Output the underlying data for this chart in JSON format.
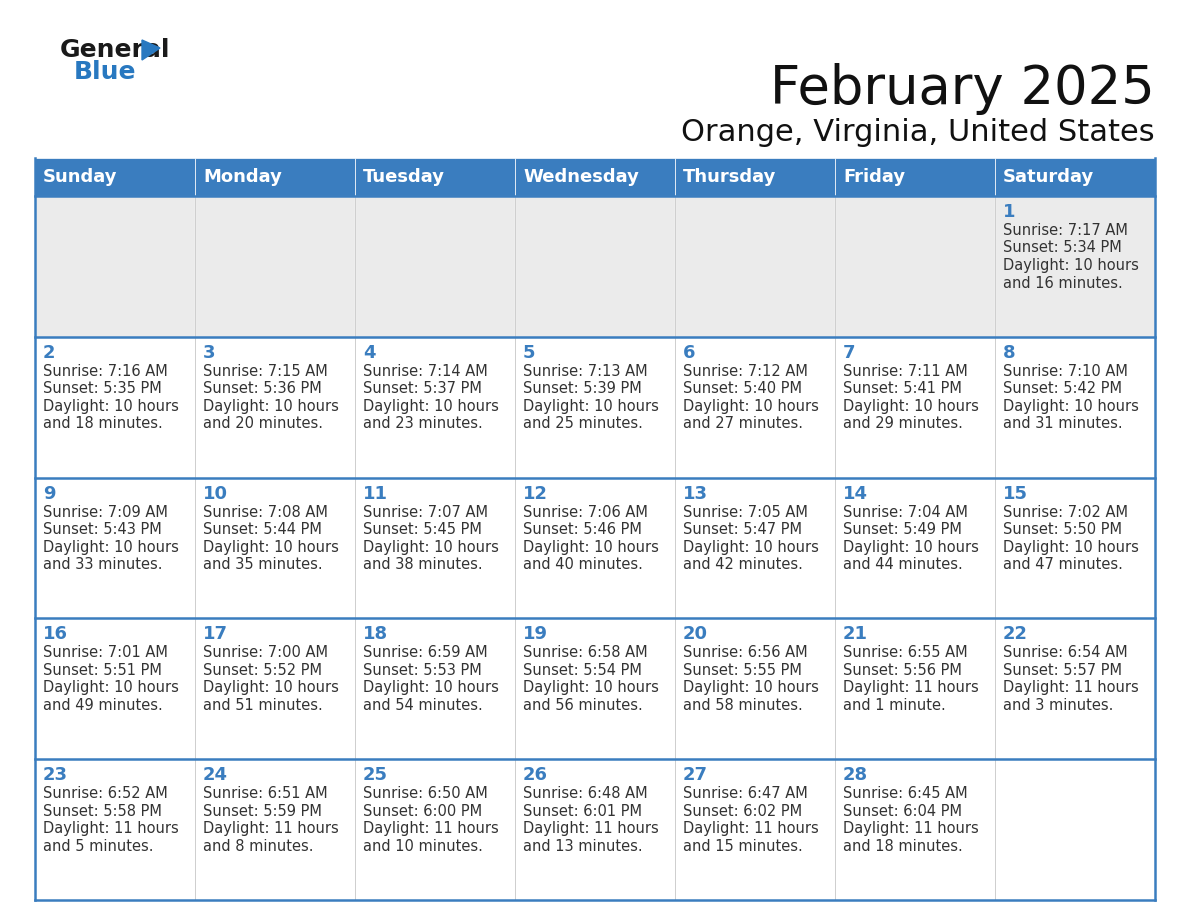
{
  "title": "February 2025",
  "subtitle": "Orange, Virginia, United States",
  "header_bg": "#3a7dbf",
  "header_text_color": "#ffffff",
  "day_names": [
    "Sunday",
    "Monday",
    "Tuesday",
    "Wednesday",
    "Thursday",
    "Friday",
    "Saturday"
  ],
  "row0_bg": "#ebebeb",
  "row_bg": "#ffffff",
  "cell_border_color": "#3a7dbf",
  "day_num_color": "#3a7dbf",
  "cell_text_color": "#333333",
  "days": [
    {
      "day": 1,
      "col": 6,
      "row": 0,
      "sunrise": "7:17 AM",
      "sunset": "5:34 PM",
      "daylight_h": "10 hours",
      "daylight_m": "and 16 minutes."
    },
    {
      "day": 2,
      "col": 0,
      "row": 1,
      "sunrise": "7:16 AM",
      "sunset": "5:35 PM",
      "daylight_h": "10 hours",
      "daylight_m": "and 18 minutes."
    },
    {
      "day": 3,
      "col": 1,
      "row": 1,
      "sunrise": "7:15 AM",
      "sunset": "5:36 PM",
      "daylight_h": "10 hours",
      "daylight_m": "and 20 minutes."
    },
    {
      "day": 4,
      "col": 2,
      "row": 1,
      "sunrise": "7:14 AM",
      "sunset": "5:37 PM",
      "daylight_h": "10 hours",
      "daylight_m": "and 23 minutes."
    },
    {
      "day": 5,
      "col": 3,
      "row": 1,
      "sunrise": "7:13 AM",
      "sunset": "5:39 PM",
      "daylight_h": "10 hours",
      "daylight_m": "and 25 minutes."
    },
    {
      "day": 6,
      "col": 4,
      "row": 1,
      "sunrise": "7:12 AM",
      "sunset": "5:40 PM",
      "daylight_h": "10 hours",
      "daylight_m": "and 27 minutes."
    },
    {
      "day": 7,
      "col": 5,
      "row": 1,
      "sunrise": "7:11 AM",
      "sunset": "5:41 PM",
      "daylight_h": "10 hours",
      "daylight_m": "and 29 minutes."
    },
    {
      "day": 8,
      "col": 6,
      "row": 1,
      "sunrise": "7:10 AM",
      "sunset": "5:42 PM",
      "daylight_h": "10 hours",
      "daylight_m": "and 31 minutes."
    },
    {
      "day": 9,
      "col": 0,
      "row": 2,
      "sunrise": "7:09 AM",
      "sunset": "5:43 PM",
      "daylight_h": "10 hours",
      "daylight_m": "and 33 minutes."
    },
    {
      "day": 10,
      "col": 1,
      "row": 2,
      "sunrise": "7:08 AM",
      "sunset": "5:44 PM",
      "daylight_h": "10 hours",
      "daylight_m": "and 35 minutes."
    },
    {
      "day": 11,
      "col": 2,
      "row": 2,
      "sunrise": "7:07 AM",
      "sunset": "5:45 PM",
      "daylight_h": "10 hours",
      "daylight_m": "and 38 minutes."
    },
    {
      "day": 12,
      "col": 3,
      "row": 2,
      "sunrise": "7:06 AM",
      "sunset": "5:46 PM",
      "daylight_h": "10 hours",
      "daylight_m": "and 40 minutes."
    },
    {
      "day": 13,
      "col": 4,
      "row": 2,
      "sunrise": "7:05 AM",
      "sunset": "5:47 PM",
      "daylight_h": "10 hours",
      "daylight_m": "and 42 minutes."
    },
    {
      "day": 14,
      "col": 5,
      "row": 2,
      "sunrise": "7:04 AM",
      "sunset": "5:49 PM",
      "daylight_h": "10 hours",
      "daylight_m": "and 44 minutes."
    },
    {
      "day": 15,
      "col": 6,
      "row": 2,
      "sunrise": "7:02 AM",
      "sunset": "5:50 PM",
      "daylight_h": "10 hours",
      "daylight_m": "and 47 minutes."
    },
    {
      "day": 16,
      "col": 0,
      "row": 3,
      "sunrise": "7:01 AM",
      "sunset": "5:51 PM",
      "daylight_h": "10 hours",
      "daylight_m": "and 49 minutes."
    },
    {
      "day": 17,
      "col": 1,
      "row": 3,
      "sunrise": "7:00 AM",
      "sunset": "5:52 PM",
      "daylight_h": "10 hours",
      "daylight_m": "and 51 minutes."
    },
    {
      "day": 18,
      "col": 2,
      "row": 3,
      "sunrise": "6:59 AM",
      "sunset": "5:53 PM",
      "daylight_h": "10 hours",
      "daylight_m": "and 54 minutes."
    },
    {
      "day": 19,
      "col": 3,
      "row": 3,
      "sunrise": "6:58 AM",
      "sunset": "5:54 PM",
      "daylight_h": "10 hours",
      "daylight_m": "and 56 minutes."
    },
    {
      "day": 20,
      "col": 4,
      "row": 3,
      "sunrise": "6:56 AM",
      "sunset": "5:55 PM",
      "daylight_h": "10 hours",
      "daylight_m": "and 58 minutes."
    },
    {
      "day": 21,
      "col": 5,
      "row": 3,
      "sunrise": "6:55 AM",
      "sunset": "5:56 PM",
      "daylight_h": "11 hours",
      "daylight_m": "and 1 minute."
    },
    {
      "day": 22,
      "col": 6,
      "row": 3,
      "sunrise": "6:54 AM",
      "sunset": "5:57 PM",
      "daylight_h": "11 hours",
      "daylight_m": "and 3 minutes."
    },
    {
      "day": 23,
      "col": 0,
      "row": 4,
      "sunrise": "6:52 AM",
      "sunset": "5:58 PM",
      "daylight_h": "11 hours",
      "daylight_m": "and 5 minutes."
    },
    {
      "day": 24,
      "col": 1,
      "row": 4,
      "sunrise": "6:51 AM",
      "sunset": "5:59 PM",
      "daylight_h": "11 hours",
      "daylight_m": "and 8 minutes."
    },
    {
      "day": 25,
      "col": 2,
      "row": 4,
      "sunrise": "6:50 AM",
      "sunset": "6:00 PM",
      "daylight_h": "11 hours",
      "daylight_m": "and 10 minutes."
    },
    {
      "day": 26,
      "col": 3,
      "row": 4,
      "sunrise": "6:48 AM",
      "sunset": "6:01 PM",
      "daylight_h": "11 hours",
      "daylight_m": "and 13 minutes."
    },
    {
      "day": 27,
      "col": 4,
      "row": 4,
      "sunrise": "6:47 AM",
      "sunset": "6:02 PM",
      "daylight_h": "11 hours",
      "daylight_m": "and 15 minutes."
    },
    {
      "day": 28,
      "col": 5,
      "row": 4,
      "sunrise": "6:45 AM",
      "sunset": "6:04 PM",
      "daylight_h": "11 hours",
      "daylight_m": "and 18 minutes."
    }
  ],
  "logo_general_color": "#1a1a1a",
  "logo_blue_color": "#2878c0",
  "title_fontsize": 38,
  "subtitle_fontsize": 22,
  "header_fontsize": 13,
  "day_num_fontsize": 13,
  "cell_text_fontsize": 10.5
}
